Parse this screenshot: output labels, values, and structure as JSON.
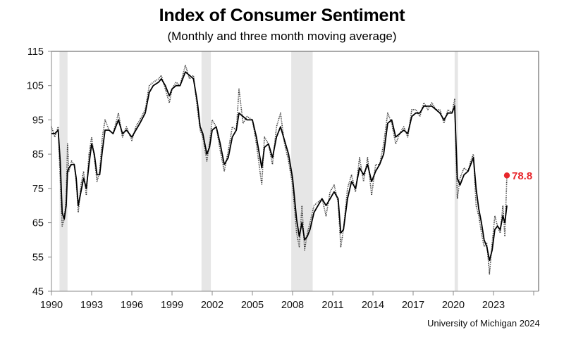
{
  "chart_data": {
    "type": "line",
    "title": "Index of Consumer Sentiment",
    "subtitle": "(Monthly and three month moving average)",
    "source": "University of Michigan 2024",
    "xlabel": "",
    "ylabel": "",
    "xlim": [
      1990,
      2026.5
    ],
    "ylim": [
      45,
      115
    ],
    "y_ticks": [
      115,
      105,
      95,
      85,
      75,
      65,
      55,
      45
    ],
    "x_ticks": [
      1990,
      1993,
      1996,
      1999,
      2002,
      2005,
      2008,
      2011,
      2014,
      2017,
      2020,
      2023,
      2026
    ],
    "x_tick_labels": [
      "1990",
      "1993",
      "1996",
      "1999",
      "2002",
      "2005",
      "2008",
      "2011",
      "2014",
      "2017",
      "2020",
      "2023",
      ""
    ],
    "grid": false,
    "recessions": [
      [
        1990.6,
        1991.2
      ],
      [
        2001.2,
        2001.9
      ],
      [
        2007.9,
        2009.5
      ],
      [
        2020.1,
        2020.35
      ]
    ],
    "annotation": {
      "label": "78.8",
      "x": 2024.0,
      "y": 78.8,
      "color": "#e8262b"
    },
    "series": [
      {
        "name": "Monthly",
        "style": "dotted",
        "color": "#333333",
        "x": [
          1990.0,
          1990.25,
          1990.5,
          1990.65,
          1990.8,
          1990.95,
          1991.1,
          1991.2,
          1991.3,
          1991.5,
          1991.7,
          1991.85,
          1992.0,
          1992.2,
          1992.4,
          1992.6,
          1992.8,
          1993.0,
          1993.2,
          1993.4,
          1993.6,
          1993.8,
          1994.0,
          1994.3,
          1994.6,
          1995.0,
          1995.3,
          1995.6,
          1996.0,
          1996.3,
          1996.6,
          1997.0,
          1997.3,
          1997.6,
          1998.0,
          1998.2,
          1998.5,
          1998.8,
          1999.0,
          1999.3,
          1999.6,
          2000.0,
          2000.3,
          2000.6,
          2000.9,
          2001.1,
          2001.3,
          2001.6,
          2001.8,
          2002.0,
          2002.3,
          2002.6,
          2002.9,
          2003.2,
          2003.5,
          2003.8,
          2004.0,
          2004.3,
          2004.6,
          2005.0,
          2005.3,
          2005.7,
          2005.9,
          2006.2,
          2006.5,
          2006.8,
          2007.1,
          2007.4,
          2007.7,
          2008.0,
          2008.3,
          2008.5,
          2008.7,
          2008.9,
          2009.1,
          2009.3,
          2009.6,
          2009.9,
          2010.2,
          2010.5,
          2010.8,
          2011.1,
          2011.4,
          2011.6,
          2011.8,
          2012.1,
          2012.4,
          2012.7,
          2013.0,
          2013.3,
          2013.6,
          2013.9,
          2014.2,
          2014.5,
          2014.8,
          2015.1,
          2015.4,
          2015.7,
          2016.0,
          2016.3,
          2016.6,
          2016.9,
          2017.2,
          2017.5,
          2017.8,
          2018.1,
          2018.4,
          2018.7,
          2019.0,
          2019.3,
          2019.6,
          2019.9,
          2020.1,
          2020.3,
          2020.5,
          2020.8,
          2021.1,
          2021.3,
          2021.5,
          2021.7,
          2021.9,
          2022.1,
          2022.3,
          2022.5,
          2022.7,
          2022.9,
          2023.1,
          2023.3,
          2023.5,
          2023.7,
          2023.85,
          2024.0
        ],
        "y": [
          93,
          90,
          93,
          78,
          64,
          66,
          72,
          88,
          80,
          83,
          82,
          77,
          68,
          76,
          80,
          73,
          85,
          90,
          84,
          77,
          80,
          90,
          95,
          92,
          91,
          97,
          90,
          93,
          89,
          93,
          95,
          98,
          105,
          106,
          107,
          108,
          104,
          100,
          104,
          106,
          105,
          111,
          107,
          108,
          98,
          92,
          90,
          83,
          88,
          95,
          93,
          86,
          80,
          86,
          93,
          92,
          104,
          94,
          96,
          95,
          88,
          76,
          90,
          88,
          82,
          93,
          97,
          88,
          83,
          76,
          62,
          58,
          70,
          57,
          62,
          65,
          70,
          71,
          72,
          67,
          74,
          76,
          71,
          58,
          63,
          75,
          79,
          74,
          84,
          77,
          84,
          73,
          82,
          82,
          88,
          97,
          94,
          88,
          91,
          93,
          90,
          98,
          98,
          96,
          100,
          98,
          100,
          98,
          98,
          94,
          98,
          97,
          101,
          72,
          78,
          81,
          80,
          83,
          85,
          70,
          67,
          62,
          58,
          59,
          50,
          59,
          67,
          64,
          62,
          70,
          61,
          78.8
        ],
        "values_note": "approximate readings"
      },
      {
        "name": "Three month moving average",
        "style": "solid",
        "color": "#000000",
        "x": [
          1990.0,
          1990.25,
          1990.5,
          1990.65,
          1990.8,
          1990.95,
          1991.1,
          1991.2,
          1991.3,
          1991.5,
          1991.7,
          1991.85,
          1992.0,
          1992.2,
          1992.4,
          1992.6,
          1992.8,
          1993.0,
          1993.2,
          1993.4,
          1993.6,
          1993.8,
          1994.0,
          1994.3,
          1994.6,
          1995.0,
          1995.3,
          1995.6,
          1996.0,
          1996.3,
          1996.6,
          1997.0,
          1997.3,
          1997.6,
          1998.0,
          1998.2,
          1998.5,
          1998.8,
          1999.0,
          1999.3,
          1999.6,
          2000.0,
          2000.3,
          2000.6,
          2000.9,
          2001.1,
          2001.3,
          2001.6,
          2001.8,
          2002.0,
          2002.3,
          2002.6,
          2002.9,
          2003.2,
          2003.5,
          2003.8,
          2004.0,
          2004.3,
          2004.6,
          2005.0,
          2005.3,
          2005.7,
          2005.9,
          2006.2,
          2006.5,
          2006.8,
          2007.1,
          2007.4,
          2007.7,
          2008.0,
          2008.3,
          2008.5,
          2008.7,
          2008.9,
          2009.1,
          2009.3,
          2009.6,
          2009.9,
          2010.2,
          2010.5,
          2010.8,
          2011.1,
          2011.4,
          2011.6,
          2011.8,
          2012.1,
          2012.4,
          2012.7,
          2013.0,
          2013.3,
          2013.6,
          2013.9,
          2014.2,
          2014.5,
          2014.8,
          2015.1,
          2015.4,
          2015.7,
          2016.0,
          2016.3,
          2016.6,
          2016.9,
          2017.2,
          2017.5,
          2017.8,
          2018.1,
          2018.4,
          2018.7,
          2019.0,
          2019.3,
          2019.6,
          2019.9,
          2020.1,
          2020.3,
          2020.5,
          2020.8,
          2021.1,
          2021.3,
          2021.5,
          2021.7,
          2021.9,
          2022.1,
          2022.3,
          2022.5,
          2022.7,
          2022.9,
          2023.1,
          2023.3,
          2023.5,
          2023.7,
          2023.85,
          2024.0
        ],
        "y": [
          91,
          91,
          92,
          83,
          68,
          66,
          70,
          80,
          81,
          82,
          82,
          78,
          70,
          74,
          78,
          75,
          82,
          88,
          85,
          79,
          79,
          86,
          92,
          92,
          91,
          95,
          91,
          92,
          90,
          92,
          94,
          97,
          103,
          105,
          106,
          107,
          105,
          102,
          104,
          105,
          105,
          109,
          108,
          107,
          100,
          93,
          91,
          85,
          87,
          92,
          93,
          88,
          82,
          84,
          90,
          92,
          97,
          96,
          95,
          95,
          90,
          81,
          87,
          88,
          84,
          90,
          93,
          89,
          85,
          78,
          66,
          61,
          65,
          60,
          61,
          63,
          68,
          70,
          72,
          70,
          72,
          74,
          72,
          62,
          63,
          72,
          77,
          75,
          81,
          79,
          82,
          77,
          80,
          82,
          85,
          94,
          95,
          90,
          91,
          92,
          91,
          96,
          97,
          97,
          99,
          99,
          99,
          98,
          97,
          95,
          97,
          97,
          99,
          78,
          76,
          79,
          80,
          82,
          84,
          75,
          69,
          65,
          60,
          58,
          54,
          57,
          63,
          64,
          63,
          67,
          65,
          70
        ],
        "values_note": "approximate readings"
      }
    ]
  }
}
